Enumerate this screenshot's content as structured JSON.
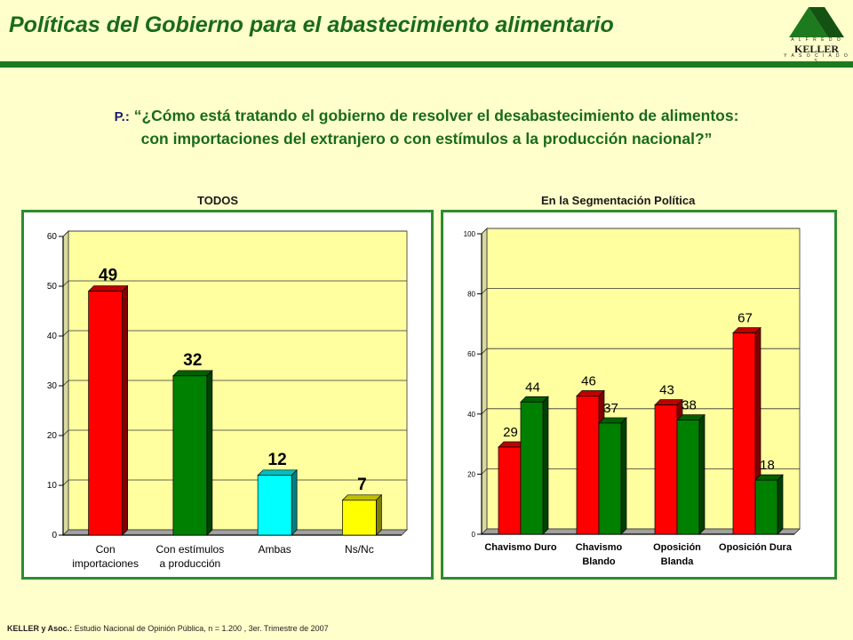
{
  "title": "Políticas del Gobierno para el abastecimiento alimentario",
  "logo": {
    "top_text": "A L F R E D O",
    "name": "KELLER",
    "bottom_text": "Y  A S O C I A D O S"
  },
  "question": {
    "label": "P.:",
    "line1": "“¿Cómo está tratando el gobierno de resolver el desabastecimiento de alimentos:",
    "line2": "con importaciones del extranjero o con estímulos a la producción nacional?”"
  },
  "colors": {
    "red": "#ff0000",
    "green": "#008000",
    "cyan": "#00ffff",
    "yellow": "#ffff00",
    "plot_bg": "#ffffa0",
    "border": "#2e8b2e"
  },
  "chart_data": [
    {
      "type": "bar",
      "title": "TODOS",
      "ylim": [
        0,
        60
      ],
      "yticks": [
        0,
        10,
        20,
        30,
        40,
        50,
        60
      ],
      "grid": true,
      "categories": [
        [
          "Con",
          "importaciones"
        ],
        [
          "Con estímulos",
          "a producción"
        ],
        [
          "Ambas"
        ],
        [
          "Ns/Nc"
        ]
      ],
      "values": [
        49,
        32,
        12,
        7
      ],
      "colors": [
        "#ff0000",
        "#008000",
        "#00ffff",
        "#ffff00"
      ]
    },
    {
      "type": "bar",
      "title": "En la Segmentación Política",
      "ylim": [
        0,
        100
      ],
      "yticks": [
        0,
        20,
        40,
        60,
        80,
        100
      ],
      "grid": true,
      "categories": [
        [
          "Chavismo Duro"
        ],
        [
          "Chavismo",
          "Blando"
        ],
        [
          "Oposición",
          "Blanda"
        ],
        [
          "Oposición Dura"
        ]
      ],
      "series": [
        {
          "values": [
            29,
            46,
            43,
            67
          ],
          "color": "#ff0000"
        },
        {
          "values": [
            44,
            37,
            38,
            18
          ],
          "color": "#008000"
        }
      ]
    }
  ],
  "footer": {
    "source_bold": "KELLER y Asoc.:",
    "source_text": " Estudio Nacional de Opinión Pública, n = 1.200 , 3er. Trimestre de 2007"
  }
}
